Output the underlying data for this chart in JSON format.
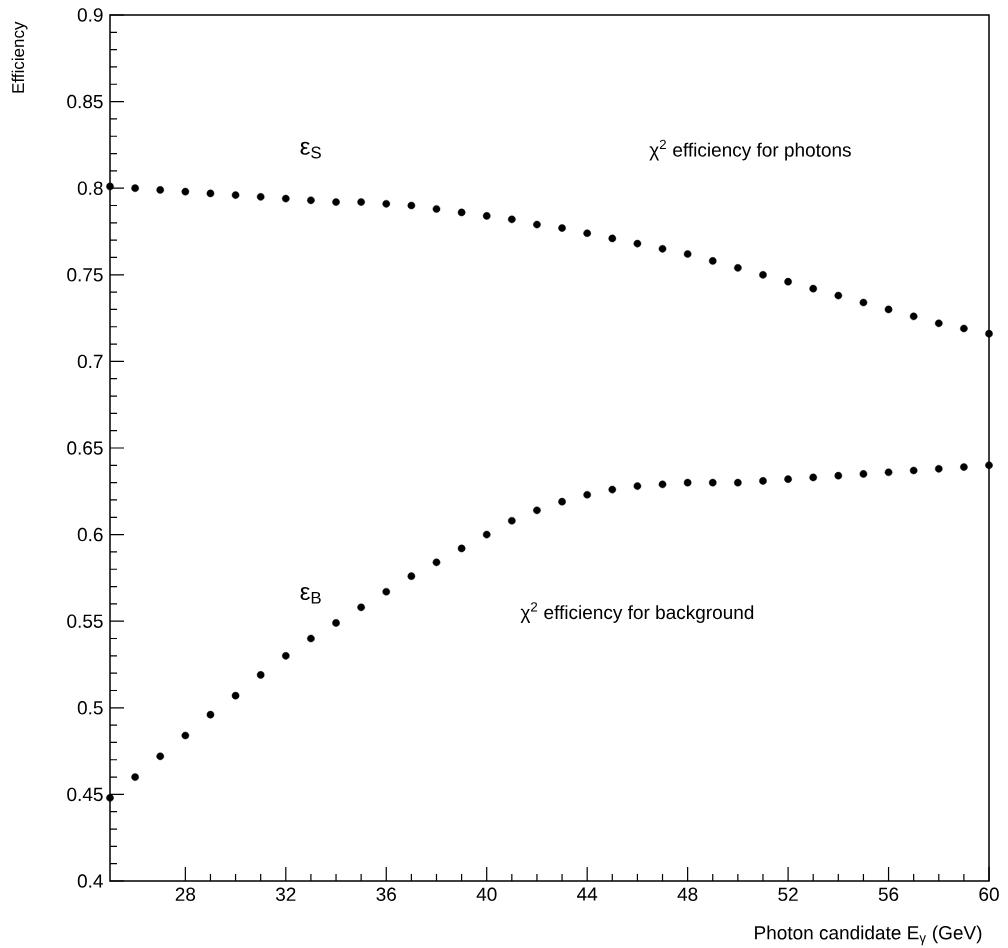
{
  "chart_data": {
    "type": "scatter",
    "xlabel": "Photon candidate E$_{γ}$ (GeV)",
    "ylabel": "Efficiency",
    "x": [
      25,
      26,
      27,
      28,
      29,
      30,
      31,
      32,
      33,
      34,
      35,
      36,
      37,
      38,
      39,
      40,
      41,
      42,
      43,
      44,
      45,
      46,
      47,
      48,
      49,
      50,
      51,
      52,
      53,
      54,
      55,
      56,
      57,
      58,
      59,
      60
    ],
    "series": [
      {
        "name": "ε$_{S}$",
        "color": "#000000",
        "values": [
          0.801,
          0.8,
          0.799,
          0.798,
          0.797,
          0.796,
          0.795,
          0.794,
          0.793,
          0.792,
          0.792,
          0.791,
          0.79,
          0.788,
          0.786,
          0.784,
          0.782,
          0.779,
          0.777,
          0.774,
          0.771,
          0.768,
          0.765,
          0.762,
          0.758,
          0.754,
          0.75,
          0.746,
          0.742,
          0.738,
          0.734,
          0.73,
          0.726,
          0.722,
          0.719,
          0.716
        ]
      },
      {
        "name": "ε$_{B}$",
        "color": "#000000",
        "values": [
          0.448,
          0.46,
          0.472,
          0.484,
          0.496,
          0.507,
          0.519,
          0.53,
          0.54,
          0.549,
          0.558,
          0.567,
          0.576,
          0.584,
          0.592,
          0.6,
          0.608,
          0.614,
          0.619,
          0.623,
          0.626,
          0.628,
          0.629,
          0.63,
          0.63,
          0.63,
          0.631,
          0.632,
          0.633,
          0.634,
          0.635,
          0.636,
          0.637,
          0.638,
          0.639,
          0.64
        ]
      }
    ],
    "annotations": [
      "χ$^{2}$ efficiency for photons",
      "χ$^{2}$ efficiency for background"
    ],
    "xlim": [
      25,
      60
    ],
    "ylim": [
      0.4,
      0.9
    ],
    "xticks": [
      28,
      32,
      36,
      40,
      44,
      48,
      52,
      56,
      60
    ],
    "yticks": [
      0.4,
      0.45,
      0.5,
      0.55,
      0.6,
      0.65,
      0.7,
      0.75,
      0.8,
      0.85,
      0.9
    ]
  }
}
